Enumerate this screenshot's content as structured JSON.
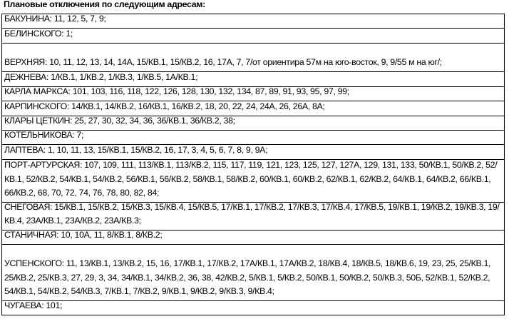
{
  "title": "Плановые отключения по следующим адресам:",
  "rows": [
    "БАКУНИНА: 11, 12, 5, 7, 9;",
    "БЕЛИНСКОГО: 1;",
    "ВЕРХНЯЯ: 10, 11, 12, 13, 14, 14А, 15/КВ.1, 15/КВ.2, 16, 17А, 7, 7/от ориентира 57м на юго-восток, 9, 9/55 м на юг/;",
    "ДЕЖНЕВА: 1/КВ.1, 1/КВ.2, 1/КВ.3, 1/КВ.5, 1А/КВ.1;",
    "КАРЛА МАРКСА: 101, 103, 116, 118, 122, 126, 128, 130, 132, 134, 87, 89, 91, 93, 95, 97, 99;",
    "КАРПИНСКОГО: 14/КВ.1, 14/КВ.2, 16/КВ.1, 16/КВ.2, 18, 20, 22, 24, 24А, 26, 26А, 8А;",
    "КЛАРЫ ЦЕТКИН: 25, 27, 30, 32, 34, 36, 36/КВ.1, 36/КВ.2, 38;",
    "КОТЕЛЬНИКОВА: 7;",
    "ЛАПТЕВА: 1, 10, 11, 13, 15/КВ.1, 15/КВ.2, 16, 17, 3, 4, 5, 6, 7, 8, 9, 9А;",
    "ПОРТ-АРТУРСКАЯ: 107, 109, 111, 113/КВ.1, 113/КВ.2, 115, 117, 119, 121, 123, 125, 127, 127А, 129, 131, 133, 50/КВ.1, 50/КВ.2, 52/КВ.1, 52/КВ.2, 54/КВ.1, 54/КВ.2, 56/КВ.1, 56/КВ.2, 58/КВ.1, 58/КВ.2, 60/КВ.1, 60/КВ.2, 62/КВ.1, 62/КВ.2, 64/КВ.1, 64/КВ.2, 66/КВ.1, 66/КВ.2, 68, 70, 72, 74, 76, 78, 80, 82, 84;",
    "СНЕГОВАЯ: 15/КВ.1, 15/КВ.2, 15/КВ.3, 15/КВ.4, 15/КВ.5, 17/КВ.1, 17/КВ.2, 17/КВ.3, 17/КВ.4, 17/КВ.5, 19/КВ.1, 19/КВ.2, 19/КВ.3, 19/КВ.4, 23А/КВ.1, 23А/КВ.2, 23А/КВ.3;",
    "СТАНИЧНАЯ: 10, 10А, 11, 8/КВ.1, 8/КВ.2;",
    "УСПЕНСКОГО: 11, 13/КВ.1, 13/КВ.2, 15, 16, 17/КВ.1, 17/КВ.2, 17А/КВ.1, 17А/КВ.2, 18/КВ.4, 18/КВ.5, 18/КВ.6, 19, 23, 25, 25/КВ.1, 25/КВ.2, 25/КВ.3, 27, 29, 3, 34, 34/КВ.1, 34/КВ.2, 36, 38, 42/КВ.2, 5/КВ.1, 5/КВ.2, 50/КВ.1, 50/КВ.2, 50/КВ.3, 50Б, 52/КВ.1, 52/КВ.2, 54/КВ.1, 54/КВ.2, 54/КВ.3, 7/КВ.1, 7/КВ.2, 9/КВ.1, 9/КВ.2, 9/КВ.3, 9/КВ.4;",
    "ЧУГАЕВА: 101;"
  ]
}
